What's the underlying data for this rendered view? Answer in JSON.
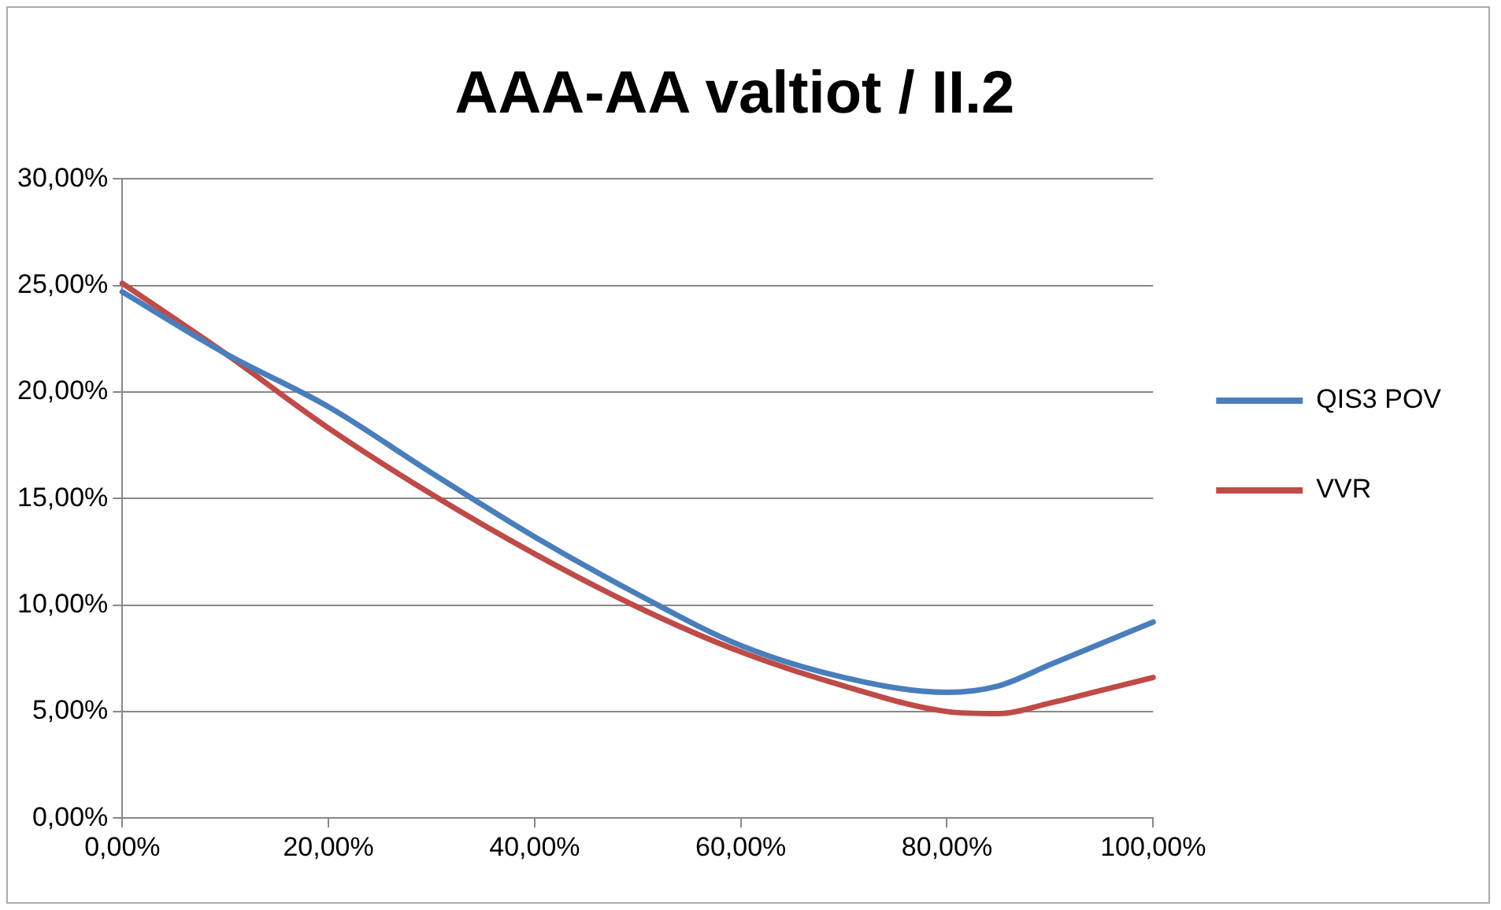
{
  "chart_data": {
    "type": "line",
    "title": "AAA-AA valtiot / II.2",
    "series": [
      {
        "name": "QIS3 POV",
        "color": "#4a7ebb",
        "x": [
          0,
          10,
          20,
          30,
          40,
          50,
          60,
          70,
          80,
          85,
          90,
          95,
          100
        ],
        "values": [
          24.7,
          21.8,
          19.3,
          16.2,
          13.2,
          10.5,
          8.1,
          6.6,
          5.9,
          6.2,
          7.2,
          8.2,
          9.2
        ]
      },
      {
        "name": "VVR",
        "color": "#be4b48",
        "x": [
          0,
          10,
          20,
          30,
          40,
          50,
          60,
          70,
          80,
          85,
          90,
          95,
          100
        ],
        "values": [
          25.1,
          21.8,
          18.3,
          15.2,
          12.4,
          9.9,
          7.8,
          6.2,
          5.0,
          4.9,
          5.4,
          6.0,
          6.6
        ]
      }
    ],
    "xlim": [
      0,
      100
    ],
    "xticks": [
      {
        "value": 0,
        "label": "0,00%"
      },
      {
        "value": 20,
        "label": "20,00%"
      },
      {
        "value": 40,
        "label": "40,00%"
      },
      {
        "value": 60,
        "label": "60,00%"
      },
      {
        "value": 80,
        "label": "80,00%"
      },
      {
        "value": 100,
        "label": "100,00%"
      }
    ],
    "ylim": [
      0,
      30
    ],
    "yticks": [
      {
        "value": 0,
        "label": "0,00%"
      },
      {
        "value": 5,
        "label": "5,00%"
      },
      {
        "value": 10,
        "label": "10,00%"
      },
      {
        "value": 15,
        "label": "15,00%"
      },
      {
        "value": 20,
        "label": "20,00%"
      },
      {
        "value": 25,
        "label": "25,00%"
      },
      {
        "value": 30,
        "label": "30,00%"
      }
    ],
    "grid": "y",
    "legend": "right",
    "marker": "none",
    "line_style": "solid"
  }
}
